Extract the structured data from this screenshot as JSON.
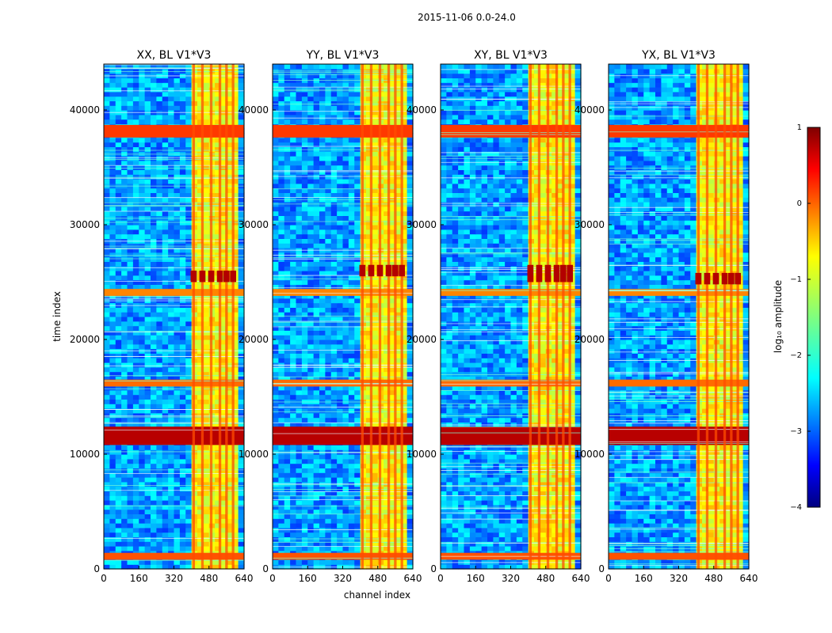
{
  "figure": {
    "suptitle": "2015-11-06 0.0-24.0",
    "shared_xlabel": "channel index",
    "shared_ylabel": "time index"
  },
  "chart_data": {
    "type": "heatmap",
    "colormap": "jet",
    "xlim": [
      0,
      640
    ],
    "ylim": [
      0,
      44000
    ],
    "xticks": [
      0,
      160,
      320,
      480,
      640
    ],
    "yticks": [
      0,
      10000,
      20000,
      30000,
      40000
    ],
    "panels": [
      {
        "title": "XX, BL V1*V3",
        "dark_block_rows": [
          [
            25000,
            26000
          ]
        ]
      },
      {
        "title": "YY, BL V1*V3",
        "dark_block_rows": [
          [
            25500,
            26500
          ]
        ]
      },
      {
        "title": "XY, BL V1*V3",
        "dark_block_rows": [
          [
            25000,
            26500
          ]
        ]
      },
      {
        "title": "YX, BL V1*V3",
        "dark_block_rows": [
          [
            24800,
            25800
          ]
        ]
      }
    ],
    "rfi_channel_band": [
      400,
      600
    ],
    "rfi_sub_channels": [
      410,
      450,
      490,
      530,
      560,
      590
    ],
    "bright_time_bands": [
      {
        "range": [
          800,
          1400
        ],
        "level": 0.3
      },
      {
        "range": [
          10800,
          12400
        ],
        "level": 0.9
      },
      {
        "range": [
          15900,
          16500
        ],
        "level": 0.2
      },
      {
        "range": [
          23800,
          24400
        ],
        "level": 0.1
      },
      {
        "range": [
          37600,
          38700
        ],
        "level": 0.4
      }
    ],
    "colorbar": {
      "label": "log₁₀ amplitude",
      "min": -4,
      "max": 1,
      "ticks": [
        "1",
        "0",
        "−1",
        "−2",
        "−3",
        "−4"
      ]
    }
  }
}
